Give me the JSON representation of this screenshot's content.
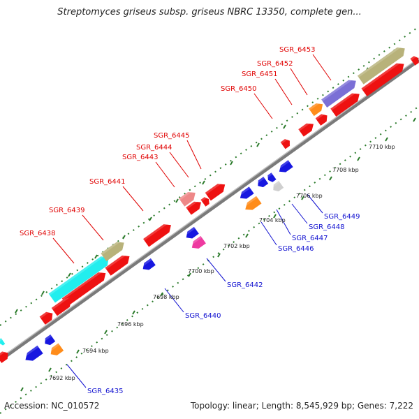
{
  "title": "Streptomyces griseus subsp. griseus NBRC 13350, complete gen...",
  "footer": {
    "accession": "Accession: NC_010572",
    "summary": "Topology: linear; Length: 8,545,929 bp; Genes: 7,222"
  },
  "colors": {
    "red": "#ee1111",
    "cyan": "#22eeee",
    "khaki": "#b8b27a",
    "purple": "#7b6fd6",
    "orange": "#ff8c1a",
    "blue": "#1717e0",
    "magenta": "#ee3aa0",
    "pink": "#ee8888",
    "gray": "#cfcfcf",
    "backbone": "#7a7a7a",
    "dots": "#2a7a2a",
    "label_top": "#e00000",
    "label_bottom": "#1010d0"
  },
  "gene_labels_top": [
    {
      "name": "SGR_6438"
    },
    {
      "name": "SGR_6439"
    },
    {
      "name": "SGR_6441"
    },
    {
      "name": "SGR_6443"
    },
    {
      "name": "SGR_6444"
    },
    {
      "name": "SGR_6445"
    },
    {
      "name": "SGR_6450"
    },
    {
      "name": "SGR_6451"
    },
    {
      "name": "SGR_6452"
    },
    {
      "name": "SGR_6453"
    }
  ],
  "gene_labels_bottom": [
    {
      "name": "SGR_6435"
    },
    {
      "name": "SGR_6440"
    },
    {
      "name": "SGR_6442"
    },
    {
      "name": "SGR_6446"
    },
    {
      "name": "SGR_6447"
    },
    {
      "name": "SGR_6448"
    },
    {
      "name": "SGR_6449"
    }
  ],
  "scale_ticks": [
    "7692 kbp",
    "7694 kbp",
    "7696 kbp",
    "7698 kbp",
    "7700 kbp",
    "7702 kbp",
    "7704 kbp",
    "7706 kbp",
    "7708 kbp",
    "7710 kbp"
  ]
}
